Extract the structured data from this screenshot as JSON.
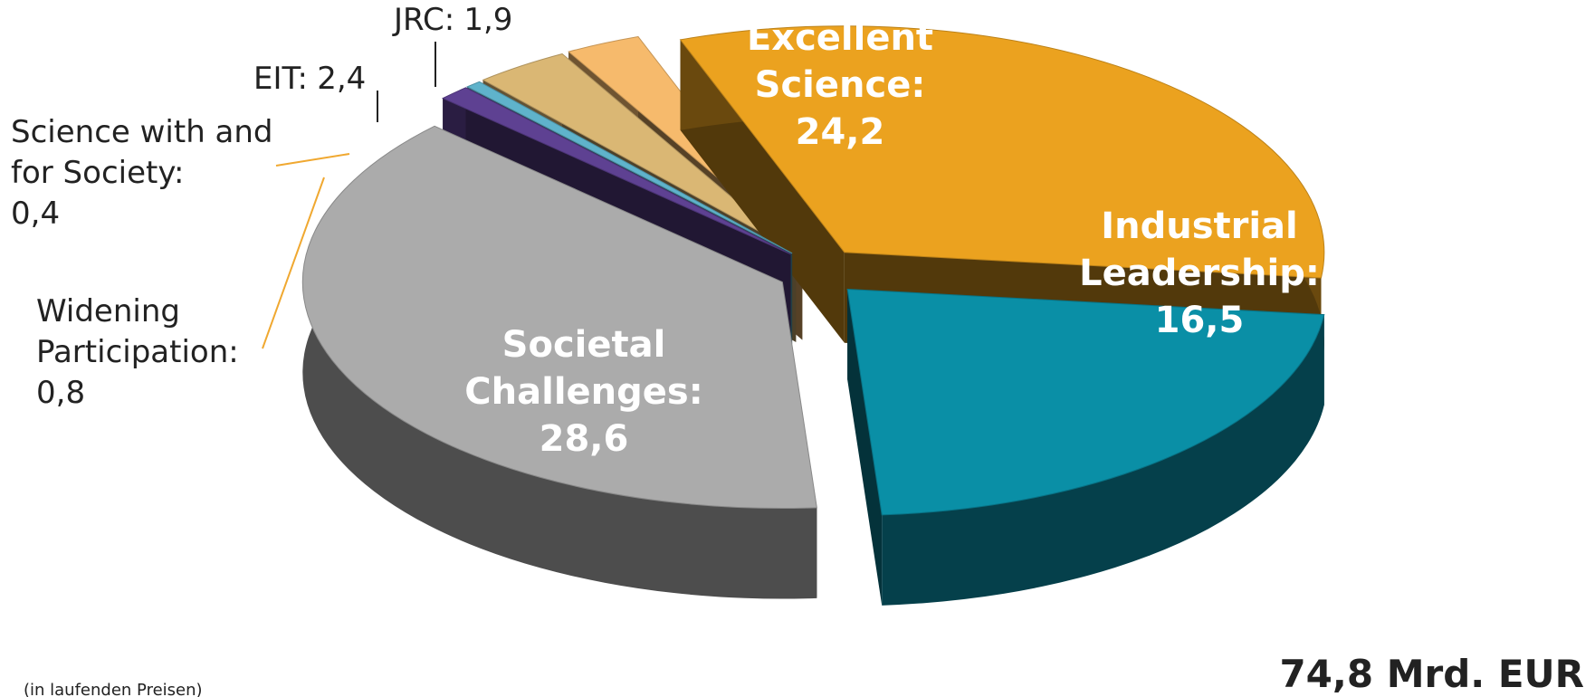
{
  "chart_data": {
    "type": "pie",
    "categories": [
      "Excellent Science:",
      "Industrial Leadership:",
      "Societal Challenges:",
      "Widening Participation:",
      "Science with and for Society:",
      "EIT:",
      "JRC:"
    ],
    "values": [
      24.2,
      16.5,
      28.6,
      0.8,
      0.4,
      2.4,
      1.9
    ],
    "value_labels": [
      "24,2",
      "16,5",
      "28,6",
      "0,8",
      "0,4",
      "2,4",
      "1,9"
    ],
    "colors": [
      "#eba21f",
      "#0a8fa6",
      "#ababab",
      "#5e4192",
      "#5fb3cb",
      "#dab774",
      "#f6ba6c"
    ],
    "total_label": "74,8 Mrd. EUR",
    "note": "(in laufenden Preisen)"
  }
}
